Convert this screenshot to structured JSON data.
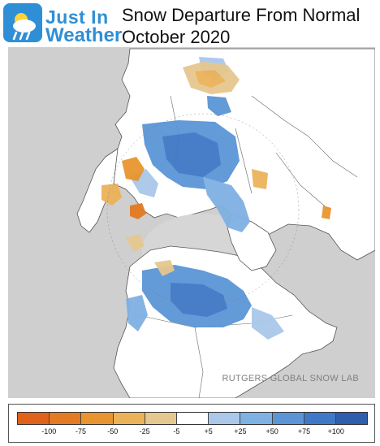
{
  "header": {
    "logo_line1": "Just In",
    "logo_line2": "Weather",
    "title_line1": "Snow Departure From Normal",
    "title_line2": "October 2020"
  },
  "map": {
    "projection": "polar stereographic (Northern Hemisphere)",
    "credit": "RUTGERS GLOBAL SNOW LAB",
    "colors": {
      "ocean": "#cfcfcf",
      "land": "#ffffff",
      "sea_ice": "#e8e8e8",
      "borders": "#555555"
    }
  },
  "legend": {
    "unit_note": "",
    "bins": [
      {
        "color": "#e0611a"
      },
      {
        "color": "#e47a22"
      },
      {
        "color": "#e8952f"
      },
      {
        "color": "#ebb25a"
      },
      {
        "color": "#e6c78f"
      },
      {
        "color": "#ffffff"
      },
      {
        "color": "#a9c8ea"
      },
      {
        "color": "#7fb1e3"
      },
      {
        "color": "#5b95d6"
      },
      {
        "color": "#3f78c6"
      },
      {
        "color": "#2e5eac"
      }
    ],
    "labels": [
      "-100",
      "-75",
      "-50",
      "-25",
      "-5",
      "+5",
      "+25",
      "+50",
      "+75",
      "+100"
    ]
  }
}
